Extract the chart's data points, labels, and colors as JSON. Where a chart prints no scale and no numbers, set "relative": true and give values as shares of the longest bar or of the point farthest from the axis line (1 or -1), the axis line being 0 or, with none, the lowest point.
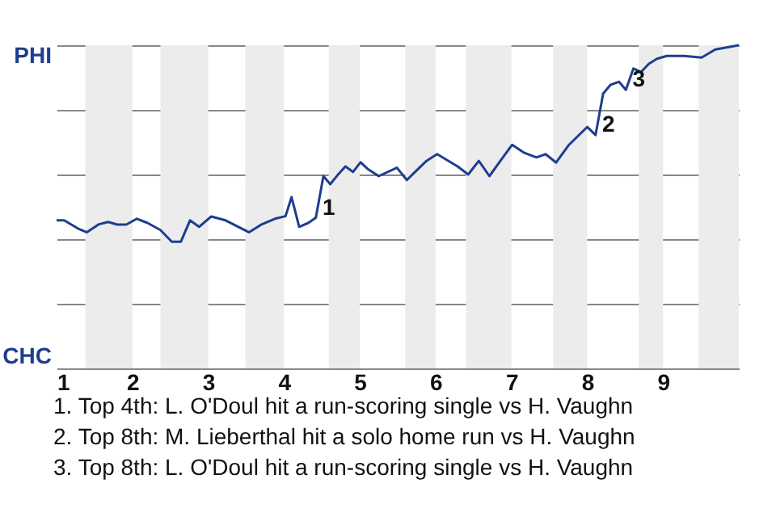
{
  "chart_data": {
    "type": "line",
    "relative": true,
    "x": [
      1.0,
      1.1,
      1.28,
      1.4,
      1.56,
      1.68,
      1.8,
      1.92,
      2.06,
      2.2,
      2.37,
      2.52,
      2.64,
      2.76,
      2.88,
      3.04,
      3.23,
      3.54,
      3.71,
      3.88,
      4.02,
      4.1,
      4.2,
      4.32,
      4.42,
      4.52,
      4.61,
      4.7,
      4.81,
      4.91,
      5.01,
      5.11,
      5.25,
      5.49,
      5.62,
      5.88,
      6.02,
      6.29,
      6.43,
      6.57,
      6.71,
      6.87,
      7.01,
      7.17,
      7.33,
      7.45,
      7.59,
      7.76,
      8.0,
      8.11,
      8.21,
      8.31,
      8.42,
      8.51,
      8.61,
      8.71,
      8.81,
      8.92,
      9.05,
      9.28,
      9.51,
      9.69,
      10.0
    ],
    "series": [
      {
        "color": "#1f3d8f",
        "values": [
          0.458,
          0.458,
          0.433,
          0.421,
          0.446,
          0.453,
          0.445,
          0.445,
          0.463,
          0.45,
          0.428,
          0.392,
          0.392,
          0.458,
          0.438,
          0.47,
          0.458,
          0.421,
          0.446,
          0.463,
          0.471,
          0.53,
          0.438,
          0.45,
          0.466,
          0.595,
          0.57,
          0.596,
          0.625,
          0.608,
          0.638,
          0.616,
          0.595,
          0.621,
          0.583,
          0.642,
          0.663,
          0.625,
          0.6,
          0.642,
          0.595,
          0.647,
          0.692,
          0.667,
          0.653,
          0.663,
          0.637,
          0.692,
          0.747,
          0.722,
          0.85,
          0.878,
          0.887,
          0.862,
          0.928,
          0.917,
          0.942,
          0.958,
          0.967,
          0.967,
          0.962,
          0.987,
          1
        ]
      }
    ],
    "xlim": [
      1,
      10
    ],
    "xticks": [
      1,
      2,
      3,
      4,
      5,
      6,
      7,
      8,
      9
    ],
    "grid": "y",
    "bands": [
      {
        "axis": "x",
        "from": 1.38,
        "to": 2,
        "color": "#ececec"
      },
      {
        "axis": "x",
        "from": 2.37,
        "to": 3,
        "color": "#ececec"
      },
      {
        "axis": "x",
        "from": 3.49,
        "to": 4,
        "color": "#ececec"
      },
      {
        "axis": "x",
        "from": 4.59,
        "to": 5,
        "color": "#ececec"
      },
      {
        "axis": "x",
        "from": 5.6,
        "to": 6,
        "color": "#ececec"
      },
      {
        "axis": "x",
        "from": 6.4,
        "to": 7,
        "color": "#ececec"
      },
      {
        "axis": "x",
        "from": 7.55,
        "to": 8,
        "color": "#ececec"
      },
      {
        "axis": "x",
        "from": 8.68,
        "to": 9,
        "color": "#ececec"
      },
      {
        "axis": "x",
        "from": 9.47,
        "to": 10,
        "color": "#ececec"
      }
    ],
    "annotations": [
      "PHI",
      "CHC",
      {
        "text": "1",
        "x": 4.42,
        "y": 0.466
      },
      {
        "text": "2",
        "x": 8.11,
        "y": 0.722
      },
      {
        "text": "3",
        "x": 8.51,
        "y": 0.862
      },
      "1. Top 4th: L. O'Doul hit a run-scoring single vs H. Vaughn",
      "2. Top 8th: M. Lieberthal hit a solo home run vs H. Vaughn",
      "3. Top 8th: L. O'Doul hit a run-scoring single vs H. Vaughn"
    ]
  }
}
